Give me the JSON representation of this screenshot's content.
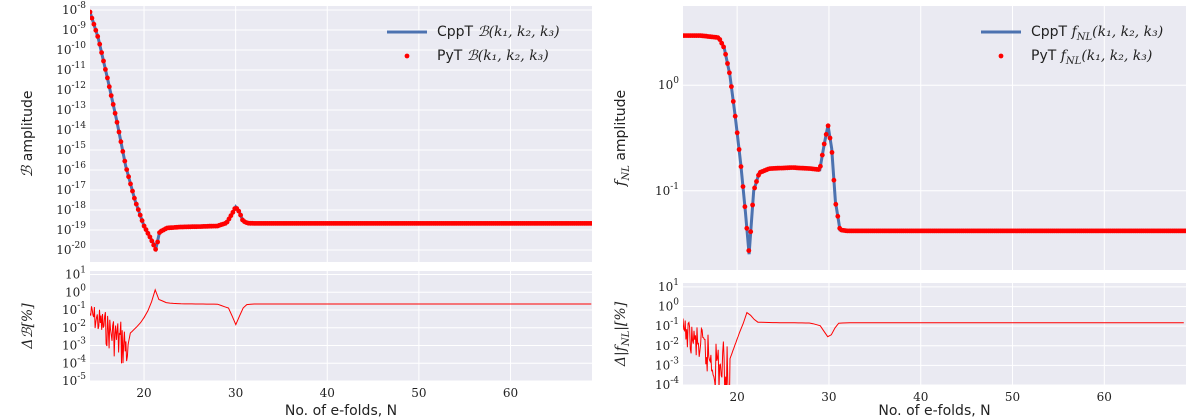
{
  "chart_data": [
    {
      "type": "line",
      "title": "",
      "xlabel": "No. of e-folds, N",
      "xlim": [
        14.1,
        68.9
      ],
      "xticks": [
        "20",
        "30",
        "40",
        "50",
        "60"
      ],
      "xtick_values": [
        20,
        30,
        40,
        50,
        60
      ],
      "top": {
        "ylabel": "B amplitude",
        "ylabel_main": "ℬ",
        "ylabel_rest": " amplitude",
        "yscale": "log",
        "ylim_exp": [
          -20.6,
          -7.8
        ],
        "yticks": [
          {
            "exp": -8,
            "label": "-8"
          },
          {
            "exp": -9,
            "label": "-9"
          },
          {
            "exp": -10,
            "label": "-10"
          },
          {
            "exp": -11,
            "label": "-11"
          },
          {
            "exp": -12,
            "label": "-12"
          },
          {
            "exp": -13,
            "label": "-13"
          },
          {
            "exp": -14,
            "label": "-14"
          },
          {
            "exp": -15,
            "label": "-15"
          },
          {
            "exp": -16,
            "label": "-16"
          },
          {
            "exp": -17,
            "label": "-17"
          },
          {
            "exp": -18,
            "label": "-18"
          },
          {
            "exp": -19,
            "label": "-19"
          },
          {
            "exp": -20,
            "label": "-20"
          }
        ],
        "legend_position": "top-right",
        "series": [
          {
            "name": "CppT B(k1,k2,k3)",
            "label_prefix": "CppT ",
            "label_math": "ℬ(k₁, k₂, k₃)",
            "marker": "line",
            "color": "#4c72b0",
            "x": [
              14.1,
              15,
              16,
              17,
              18,
              19,
              20,
              20.7,
              21.3,
              21.7,
              22.5,
              24,
              26,
              28,
              29,
              29.6,
              30,
              30.4,
              30.8,
              31.3,
              32,
              40,
              50,
              60,
              68.9
            ],
            "log10y": [
              -8.1,
              -9.4,
              -11.4,
              -13.5,
              -15.8,
              -17.5,
              -18.8,
              -19.4,
              -19.9,
              -19.1,
              -18.9,
              -18.85,
              -18.83,
              -18.8,
              -18.65,
              -18.2,
              -17.85,
              -18.1,
              -18.55,
              -18.66,
              -18.67,
              -18.67,
              -18.67,
              -18.67,
              -18.67
            ]
          },
          {
            "name": "PyT B(k1,k2,k3)",
            "label_prefix": "PyT ",
            "label_math": "ℬ(k₁, k₂, k₃)",
            "marker": "dot",
            "color": "#ff0000",
            "x": [
              14.1,
              15,
              16,
              17,
              18,
              19,
              20,
              20.7,
              21.3,
              21.7,
              22.5,
              24,
              26,
              28,
              29,
              29.6,
              30,
              30.4,
              30.8,
              31.3,
              32,
              40,
              50,
              60,
              68.9
            ],
            "log10y": [
              -8.1,
              -9.4,
              -11.4,
              -13.5,
              -15.8,
              -17.5,
              -18.8,
              -19.4,
              -20.0,
              -19.1,
              -18.9,
              -18.85,
              -18.83,
              -18.8,
              -18.65,
              -18.2,
              -17.85,
              -18.1,
              -18.55,
              -18.66,
              -18.67,
              -18.67,
              -18.67,
              -18.67,
              -18.67
            ]
          }
        ]
      },
      "bottom": {
        "ylabel": "ΔB[%]",
        "ylabel_text": "Δℬ[%]",
        "yscale": "log",
        "ylim_exp": [
          -5,
          1.2
        ],
        "yticks": [
          {
            "exp": 1,
            "label": "1"
          },
          {
            "exp": 0,
            "label": "0"
          },
          {
            "exp": -1,
            "label": "-1"
          },
          {
            "exp": -2,
            "label": "-2"
          },
          {
            "exp": -3,
            "label": "-3"
          },
          {
            "exp": -4,
            "label": "-4"
          },
          {
            "exp": -5,
            "label": "-5"
          }
        ],
        "series": [
          {
            "name": "error",
            "color": "#ff0000",
            "x": [
              14.1,
              15,
              16,
              17,
              17.8,
              18.5,
              19.5,
              20.3,
              21,
              21.3,
              21.6,
              22.5,
              24,
              26,
              28,
              29.3,
              29.8,
              30.1,
              30.5,
              31,
              32,
              40,
              50,
              60,
              68.9
            ],
            "log10y": [
              -0.7,
              -1.5,
              -2.5,
              -3.3,
              -4.2,
              -2.3,
              -1.8,
              -1.2,
              -0.3,
              0.3,
              -0.4,
              -0.6,
              -0.65,
              -0.66,
              -0.67,
              -0.9,
              -1.6,
              -1.9,
              -1.2,
              -0.7,
              -0.66,
              -0.66,
              -0.66,
              -0.66,
              -0.66
            ],
            "noise_xmax": 18.2
          }
        ]
      }
    },
    {
      "type": "line",
      "title": "",
      "xlabel": "No. of e-folds, N",
      "xlim": [
        14.1,
        68.9
      ],
      "xticks": [
        "20",
        "30",
        "40",
        "50",
        "60"
      ],
      "xtick_values": [
        20,
        30,
        40,
        50,
        60
      ],
      "top": {
        "ylabel": "f_NL amplitude",
        "ylabel_main": "f",
        "ylabel_sub": "NL",
        "ylabel_rest": " amplitude",
        "yscale": "log",
        "ylim_exp": [
          -1.75,
          0.75
        ],
        "yticks": [
          {
            "exp": 0,
            "label": "0"
          },
          {
            "exp": -1,
            "label": "-1"
          }
        ],
        "legend_position": "top-right",
        "series": [
          {
            "name": "CppT f_NL(k1,k2,k3)",
            "label_prefix": "CppT ",
            "label_math": "f",
            "label_sub": "NL",
            "label_args": "(k₁, k₂, k₃)",
            "marker": "line",
            "color": "#4c72b0",
            "x": [
              14.1,
              16,
              18,
              18.6,
              19.2,
              19.8,
              20.4,
              20.9,
              21.3,
              21.8,
              22.4,
              23.5,
              26,
              28,
              29,
              29.5,
              29.9,
              30.3,
              30.7,
              31.2,
              32,
              40,
              50,
              60,
              68.9
            ],
            "log10y": [
              0.47,
              0.47,
              0.45,
              0.35,
              0.1,
              -0.3,
              -0.75,
              -1.2,
              -1.6,
              -1.0,
              -0.83,
              -0.79,
              -0.78,
              -0.79,
              -0.8,
              -0.55,
              -0.38,
              -0.6,
              -1.1,
              -1.37,
              -1.38,
              -1.38,
              -1.38,
              -1.38,
              -1.38
            ]
          },
          {
            "name": "PyT f_NL(k1,k2,k3)",
            "label_prefix": "PyT ",
            "label_math": "f",
            "label_sub": "NL",
            "label_args": "(k₁, k₂, k₃)",
            "marker": "dot",
            "color": "#ff0000",
            "x": [
              14.1,
              16,
              18,
              18.6,
              19.2,
              19.8,
              20.4,
              20.9,
              21.3,
              21.8,
              22.4,
              23.5,
              26,
              28,
              29,
              29.5,
              29.9,
              30.3,
              30.7,
              31.2,
              32,
              40,
              50,
              60,
              68.9
            ],
            "log10y": [
              0.47,
              0.47,
              0.45,
              0.35,
              0.1,
              -0.3,
              -0.75,
              -1.2,
              -1.6,
              -1.0,
              -0.83,
              -0.79,
              -0.78,
              -0.79,
              -0.8,
              -0.55,
              -0.38,
              -0.6,
              -1.1,
              -1.37,
              -1.38,
              -1.38,
              -1.38,
              -1.38,
              -1.38
            ]
          }
        ]
      },
      "bottom": {
        "ylabel": "Δ|f_NL|[%]",
        "ylabel_pre": "Δ|",
        "ylabel_main": "f",
        "ylabel_sub": "NL",
        "ylabel_post": "|[%]",
        "yscale": "log",
        "ylim_exp": [
          -4,
          1.2
        ],
        "yticks": [
          {
            "exp": 1,
            "label": "1"
          },
          {
            "exp": 0,
            "label": "0"
          },
          {
            "exp": -1,
            "label": "-1"
          },
          {
            "exp": -2,
            "label": "-2"
          },
          {
            "exp": -3,
            "label": "-3"
          },
          {
            "exp": -4,
            "label": "-4"
          }
        ],
        "series": [
          {
            "name": "error",
            "color": "#ff0000",
            "x": [
              14.1,
              15,
              16,
              17,
              18,
              18.8,
              19.5,
              20.2,
              20.8,
              21.2,
              21.5,
              22.2,
              24,
              26,
              28,
              29.2,
              29.7,
              30.1,
              30.5,
              31,
              32,
              40,
              50,
              60,
              68.9
            ],
            "log10y": [
              -0.9,
              -1.5,
              -2.3,
              -2.8,
              -3.5,
              -3.2,
              -2.3,
              -1.4,
              -0.7,
              -0.1,
              -0.5,
              -0.8,
              -0.82,
              -0.83,
              -0.84,
              -1.0,
              -1.5,
              -1.6,
              -1.2,
              -0.85,
              -0.83,
              -0.83,
              -0.83,
              -0.83,
              -0.83
            ],
            "noise_xmax": 19.2
          }
        ]
      }
    }
  ]
}
